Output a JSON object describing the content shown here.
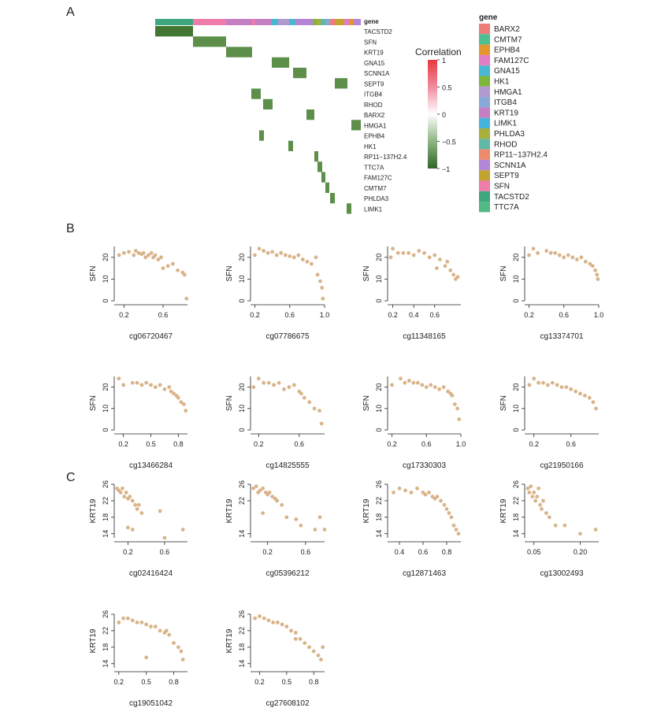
{
  "panels": {
    "a": "A",
    "b": "B",
    "c": "C"
  },
  "heatmap": {
    "annotation_label": "gene",
    "rows": [
      "TACSTD2",
      "SFN",
      "KRT19",
      "GNA15",
      "SCNN1A",
      "SEPT9",
      "ITGB4",
      "RHOD",
      "BARX2",
      "HMGA1",
      "EPHB4",
      "HK1",
      "RP11−137H2.4",
      "TTC7A",
      "FAM127C",
      "CMTM7",
      "PHLDA3",
      "LIMK1"
    ],
    "color_legend": {
      "title": "Correlation",
      "ticks": [
        "1",
        "0.5",
        "0",
        "−0.5",
        "−1"
      ]
    },
    "gene_legend": {
      "title": "gene",
      "entries": [
        {
          "name": "BARX2",
          "color": "#ec7e77"
        },
        {
          "name": "CMTM7",
          "color": "#4ebf91"
        },
        {
          "name": "EPHB4",
          "color": "#e3962f"
        },
        {
          "name": "FAM127C",
          "color": "#e27ec3"
        },
        {
          "name": "GNA15",
          "color": "#48b8d3"
        },
        {
          "name": "HK1",
          "color": "#7db63b"
        },
        {
          "name": "HMGA1",
          "color": "#b299cf"
        },
        {
          "name": "ITGB4",
          "color": "#87a8d8"
        },
        {
          "name": "KRT19",
          "color": "#c47fc3"
        },
        {
          "name": "LIMK1",
          "color": "#47b3e0"
        },
        {
          "name": "PHLDA3",
          "color": "#a7b03b"
        },
        {
          "name": "RHOD",
          "color": "#60b8a6"
        },
        {
          "name": "RP11−137H2.4",
          "color": "#ee8a6c"
        },
        {
          "name": "SCNN1A",
          "color": "#b487d6"
        },
        {
          "name": "SEPT9",
          "color": "#c3a332"
        },
        {
          "name": "SFN",
          "color": "#ef7cab"
        },
        {
          "name": "TACSTD2",
          "color": "#3ea77e"
        },
        {
          "name": "TTC7A",
          "color": "#52b985"
        }
      ]
    }
  },
  "colors": {
    "point": "#d9b48a",
    "cell": "#5e8f4a",
    "cell_dark": "#3f7330"
  },
  "chart_data": [
    {
      "type": "heatmap",
      "title": "",
      "rows": [
        "TACSTD2",
        "SFN",
        "KRT19",
        "GNA15",
        "SCNN1A",
        "SEPT9",
        "ITGB4",
        "RHOD",
        "BARX2",
        "HMGA1",
        "EPHB4",
        "HK1",
        "RP11−137H2.4",
        "TTC7A",
        "FAM127C",
        "CMTM7",
        "PHLDA3",
        "LIMK1"
      ],
      "value_range": [
        -1,
        1
      ],
      "annotation": "gene"
    },
    {
      "type": "scatter",
      "panel": "B",
      "xlabel": "cg06720467",
      "ylabel": "SFN",
      "xticks": [
        "0.2",
        "0.6"
      ],
      "yticks": [
        "0",
        "10",
        "20"
      ],
      "xlim": [
        0.1,
        0.85
      ],
      "ylim": [
        0,
        25
      ],
      "x": [
        0.15,
        0.2,
        0.25,
        0.3,
        0.32,
        0.35,
        0.38,
        0.4,
        0.42,
        0.45,
        0.48,
        0.5,
        0.52,
        0.55,
        0.58,
        0.6,
        0.65,
        0.7,
        0.75,
        0.8,
        0.82,
        0.84
      ],
      "y": [
        21,
        22,
        22.5,
        21,
        23,
        22,
        21.5,
        22,
        20,
        21,
        22,
        20,
        21,
        19,
        20,
        15,
        16,
        17,
        14,
        13,
        12,
        1
      ]
    },
    {
      "type": "scatter",
      "panel": "B",
      "xlabel": "cg07786675",
      "ylabel": "SFN",
      "xticks": [
        "0.2",
        "0.6",
        "1.0"
      ],
      "yticks": [
        "0",
        "10",
        "20"
      ],
      "xlim": [
        0.15,
        1.0
      ],
      "ylim": [
        0,
        25
      ],
      "x": [
        0.2,
        0.25,
        0.3,
        0.35,
        0.4,
        0.45,
        0.5,
        0.55,
        0.6,
        0.65,
        0.7,
        0.75,
        0.8,
        0.85,
        0.9,
        0.92,
        0.95,
        0.97,
        0.98
      ],
      "y": [
        21,
        24,
        23,
        22,
        22.5,
        21,
        22,
        21,
        20.5,
        20,
        21,
        19,
        18,
        17,
        20,
        12,
        9,
        6,
        1
      ]
    },
    {
      "type": "scatter",
      "panel": "B",
      "xlabel": "cg11348165",
      "ylabel": "SFN",
      "xticks": [
        "0.2",
        "0.4",
        "0.6"
      ],
      "yticks": [
        "0",
        "10",
        "20"
      ],
      "xlim": [
        0.15,
        0.85
      ],
      "ylim": [
        0,
        25
      ],
      "x": [
        0.18,
        0.2,
        0.25,
        0.3,
        0.35,
        0.4,
        0.45,
        0.5,
        0.55,
        0.6,
        0.62,
        0.65,
        0.7,
        0.72,
        0.75,
        0.78,
        0.8,
        0.82
      ],
      "y": [
        20,
        24,
        22,
        22,
        22,
        21,
        23,
        22,
        20,
        21,
        15,
        19,
        16,
        18,
        14,
        12,
        10,
        11
      ]
    },
    {
      "type": "scatter",
      "panel": "B",
      "xlabel": "cg13374701",
      "ylabel": "SFN",
      "xticks": [
        "0.2",
        "0.6",
        "1.0"
      ],
      "yticks": [
        "0",
        "10",
        "20"
      ],
      "xlim": [
        0.15,
        1.0
      ],
      "ylim": [
        0,
        25
      ],
      "x": [
        0.2,
        0.25,
        0.3,
        0.4,
        0.45,
        0.5,
        0.55,
        0.6,
        0.65,
        0.7,
        0.75,
        0.8,
        0.85,
        0.9,
        0.93,
        0.96,
        0.98,
        0.99
      ],
      "y": [
        21,
        24,
        22,
        23,
        22,
        22,
        21,
        20,
        21,
        20,
        19,
        20,
        18,
        17,
        16,
        14,
        12,
        10
      ]
    },
    {
      "type": "scatter",
      "panel": "B",
      "xlabel": "cg13466284",
      "ylabel": "SFN",
      "xticks": [
        "0.2",
        "0.5",
        "0.8"
      ],
      "yticks": [
        "0",
        "10",
        "20"
      ],
      "xlim": [
        0.1,
        0.9
      ],
      "ylim": [
        0,
        25
      ],
      "x": [
        0.15,
        0.2,
        0.3,
        0.35,
        0.4,
        0.45,
        0.5,
        0.55,
        0.6,
        0.65,
        0.7,
        0.72,
        0.75,
        0.78,
        0.8,
        0.83,
        0.86,
        0.88
      ],
      "y": [
        24,
        21,
        22,
        22,
        21,
        22,
        21,
        20,
        21,
        19,
        20,
        18,
        17,
        16,
        15,
        13,
        12,
        9
      ]
    },
    {
      "type": "scatter",
      "panel": "B",
      "xlabel": "cg14825555",
      "ylabel": "SFN",
      "xticks": [
        "0.2",
        "0.6"
      ],
      "yticks": [
        "0",
        "10",
        "20"
      ],
      "xlim": [
        0.12,
        0.85
      ],
      "ylim": [
        0,
        25
      ],
      "x": [
        0.15,
        0.2,
        0.25,
        0.3,
        0.35,
        0.4,
        0.45,
        0.5,
        0.55,
        0.6,
        0.62,
        0.65,
        0.7,
        0.75,
        0.8,
        0.82
      ],
      "y": [
        20,
        24,
        22,
        22,
        21,
        22,
        19,
        20,
        21,
        18,
        17,
        15,
        13,
        10,
        9,
        3
      ]
    },
    {
      "type": "scatter",
      "panel": "B",
      "xlabel": "cg17330303",
      "ylabel": "SFN",
      "xticks": [
        "0.2",
        "0.6",
        "1.0"
      ],
      "yticks": [
        "0",
        "10",
        "20"
      ],
      "xlim": [
        0.15,
        1.0
      ],
      "ylim": [
        0,
        25
      ],
      "x": [
        0.2,
        0.3,
        0.35,
        0.4,
        0.45,
        0.5,
        0.55,
        0.6,
        0.65,
        0.7,
        0.75,
        0.8,
        0.85,
        0.88,
        0.9,
        0.93,
        0.96,
        0.98
      ],
      "y": [
        21,
        24,
        22,
        23,
        22,
        22,
        21,
        20,
        21,
        20,
        19,
        20,
        18,
        17,
        16,
        12,
        10,
        5
      ]
    },
    {
      "type": "scatter",
      "panel": "B",
      "xlabel": "cg21950166",
      "ylabel": "SFN",
      "xticks": [
        "0.2",
        "0.6"
      ],
      "yticks": [
        "0",
        "10",
        "20"
      ],
      "xlim": [
        0.1,
        0.9
      ],
      "ylim": [
        0,
        25
      ],
      "x": [
        0.15,
        0.2,
        0.25,
        0.3,
        0.35,
        0.4,
        0.45,
        0.5,
        0.55,
        0.6,
        0.65,
        0.7,
        0.75,
        0.8,
        0.84,
        0.87
      ],
      "y": [
        21,
        24,
        22,
        22,
        21,
        22,
        21,
        20,
        20,
        19,
        18,
        17,
        16,
        15,
        13,
        10
      ]
    },
    {
      "type": "scatter",
      "panel": "C",
      "xlabel": "cg02416424",
      "ylabel": "KRT19",
      "xticks": [
        "0.2",
        "0.6"
      ],
      "yticks": [
        "14",
        "18",
        "22",
        "26"
      ],
      "xlim": [
        0.05,
        0.85
      ],
      "ylim": [
        13,
        26
      ],
      "x": [
        0.08,
        0.1,
        0.12,
        0.14,
        0.16,
        0.18,
        0.2,
        0.22,
        0.25,
        0.28,
        0.3,
        0.32,
        0.35,
        0.2,
        0.25,
        0.6,
        0.55,
        0.8
      ],
      "y": [
        25,
        24.5,
        24,
        25,
        23,
        24,
        22.5,
        23,
        22,
        21,
        20,
        21,
        19,
        15.5,
        15,
        13,
        19.5,
        15
      ]
    },
    {
      "type": "scatter",
      "panel": "C",
      "xlabel": "cg05396212",
      "ylabel": "KRT19",
      "xticks": [
        "0.2",
        "0.6"
      ],
      "yticks": [
        "14",
        "22",
        "26"
      ],
      "xlim": [
        0.02,
        0.8
      ],
      "ylim": [
        13,
        26
      ],
      "x": [
        0.05,
        0.08,
        0.1,
        0.12,
        0.15,
        0.18,
        0.2,
        0.22,
        0.25,
        0.28,
        0.3,
        0.35,
        0.15,
        0.4,
        0.5,
        0.55,
        0.7,
        0.75,
        0.8
      ],
      "y": [
        25,
        25.5,
        24,
        24.5,
        25,
        24,
        23.5,
        24,
        23,
        22.5,
        22,
        21,
        19,
        18,
        17.5,
        16,
        15,
        18,
        15
      ]
    },
    {
      "type": "scatter",
      "panel": "C",
      "xlabel": "cg12871463",
      "ylabel": "KRT19",
      "xticks": [
        "0.4",
        "0.6",
        "0.8"
      ],
      "yticks": [
        "14",
        "18",
        "22",
        "26"
      ],
      "xlim": [
        0.3,
        0.92
      ],
      "ylim": [
        13,
        26
      ],
      "x": [
        0.35,
        0.4,
        0.45,
        0.5,
        0.55,
        0.6,
        0.62,
        0.65,
        0.68,
        0.7,
        0.72,
        0.75,
        0.78,
        0.8,
        0.82,
        0.84,
        0.86,
        0.88,
        0.9
      ],
      "y": [
        24,
        25,
        24.5,
        24,
        25,
        24,
        23.5,
        24,
        23,
        22.5,
        23,
        22,
        21,
        20,
        19,
        18,
        16,
        15,
        14
      ]
    },
    {
      "type": "scatter",
      "panel": "C",
      "xlabel": "cg13002493",
      "ylabel": "KRT19",
      "xticks": [
        "0.05",
        "0.20"
      ],
      "yticks": [
        "14",
        "18",
        "22",
        "26"
      ],
      "xlim": [
        0.02,
        0.26
      ],
      "ylim": [
        13,
        26
      ],
      "x": [
        0.03,
        0.035,
        0.04,
        0.045,
        0.05,
        0.055,
        0.06,
        0.065,
        0.07,
        0.075,
        0.08,
        0.09,
        0.1,
        0.12,
        0.15,
        0.2,
        0.25
      ],
      "y": [
        25,
        24,
        25.5,
        23,
        24,
        22,
        23,
        25,
        21,
        20,
        22,
        19,
        18,
        16,
        16,
        14,
        15
      ]
    },
    {
      "type": "scatter",
      "panel": "C",
      "xlabel": "cg19051042",
      "ylabel": "KRT19",
      "xticks": [
        "0.2",
        "0.5",
        "0.8"
      ],
      "yticks": [
        "14",
        "18",
        "22",
        "26"
      ],
      "xlim": [
        0.15,
        0.95
      ],
      "ylim": [
        13,
        26
      ],
      "x": [
        0.2,
        0.25,
        0.3,
        0.35,
        0.4,
        0.45,
        0.5,
        0.55,
        0.6,
        0.65,
        0.7,
        0.72,
        0.75,
        0.8,
        0.85,
        0.88,
        0.9,
        0.5
      ],
      "y": [
        24,
        25,
        25,
        24.5,
        24,
        24,
        23.5,
        23,
        23,
        22,
        21.5,
        22,
        21,
        19,
        18,
        17,
        15,
        15.5
      ]
    },
    {
      "type": "scatter",
      "panel": "C",
      "xlabel": "cg27608102",
      "ylabel": "KRT19",
      "xticks": [
        "0.2",
        "0.5",
        "0.8"
      ],
      "yticks": [
        "14",
        "18",
        "22",
        "26"
      ],
      "xlim": [
        0.1,
        0.92
      ],
      "ylim": [
        13,
        26
      ],
      "x": [
        0.15,
        0.2,
        0.25,
        0.3,
        0.35,
        0.4,
        0.45,
        0.5,
        0.55,
        0.6,
        0.65,
        0.7,
        0.75,
        0.8,
        0.85,
        0.88,
        0.9,
        0.6
      ],
      "y": [
        25,
        25.5,
        25,
        24.5,
        24,
        24,
        23.5,
        23,
        22,
        21.5,
        20,
        19,
        18,
        17,
        16,
        15,
        18,
        20
      ]
    }
  ]
}
